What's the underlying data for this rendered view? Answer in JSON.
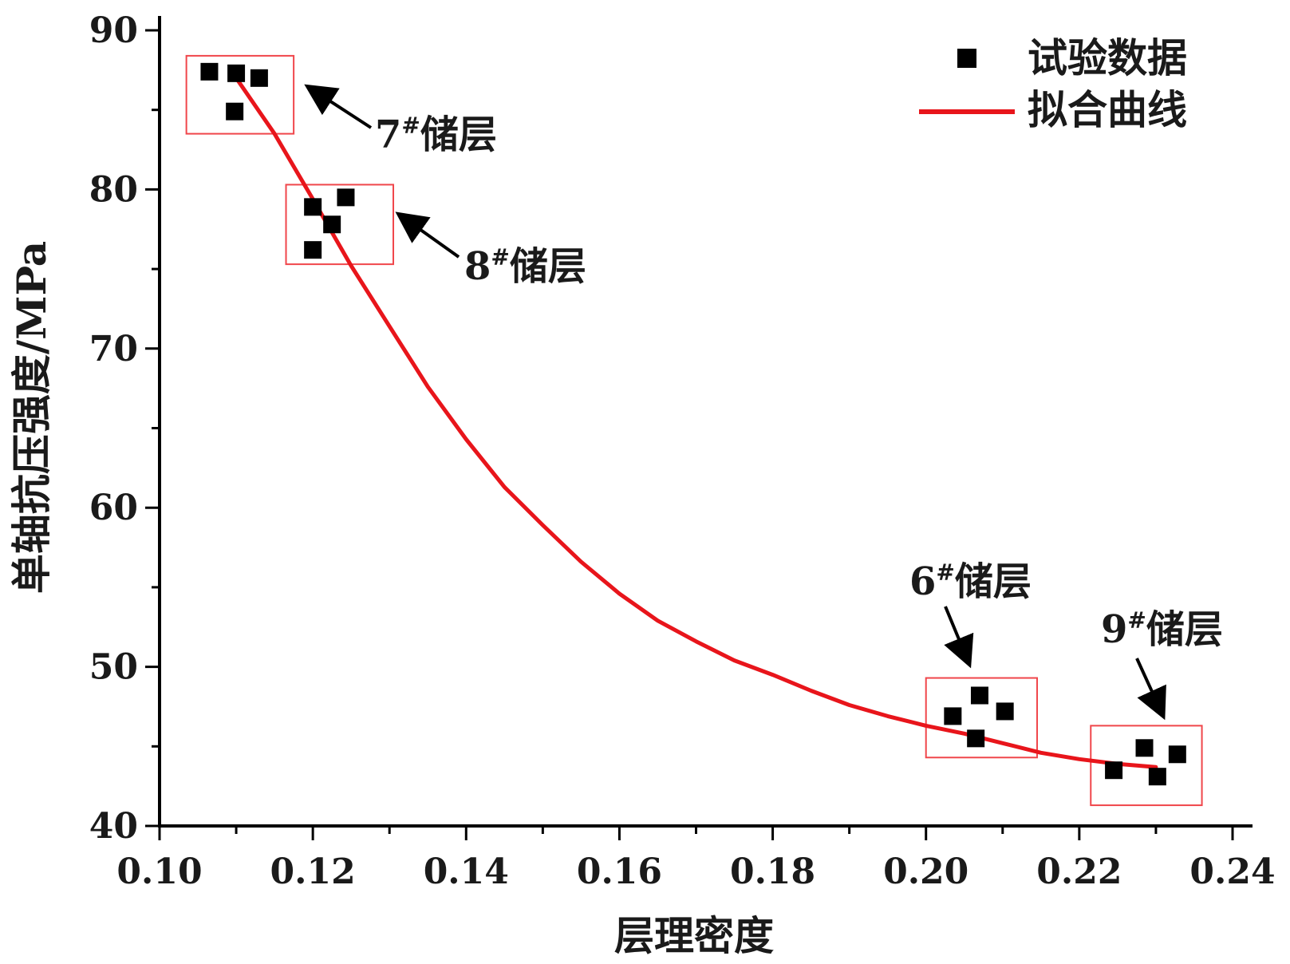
{
  "chart_data": {
    "type": "scatter",
    "xlabel": "层理密度",
    "ylabel": "单轴抗压强度/MPa",
    "xlim": [
      0.1,
      0.24
    ],
    "ylim": [
      40,
      90
    ],
    "x_ticks": [
      "0.10",
      "0.12",
      "0.14",
      "0.16",
      "0.18",
      "0.20",
      "0.22",
      "0.24"
    ],
    "y_ticks": [
      "40",
      "50",
      "60",
      "70",
      "80",
      "90"
    ],
    "grid": false,
    "legend_position": "top-right",
    "series": [
      {
        "name": "试验数据",
        "kind": "scatter",
        "color": "#000000",
        "points": [
          [
            0.1065,
            87.4
          ],
          [
            0.11,
            87.3
          ],
          [
            0.113,
            87.0
          ],
          [
            0.1098,
            84.9
          ],
          [
            0.12,
            78.9
          ],
          [
            0.1243,
            79.5
          ],
          [
            0.1225,
            77.8
          ],
          [
            0.12,
            76.2
          ],
          [
            0.2035,
            46.9
          ],
          [
            0.207,
            48.2
          ],
          [
            0.2103,
            47.2
          ],
          [
            0.2065,
            45.5
          ],
          [
            0.2245,
            43.5
          ],
          [
            0.2285,
            44.9
          ],
          [
            0.2302,
            43.1
          ],
          [
            0.2328,
            44.5
          ]
        ]
      },
      {
        "name": "拟合曲线",
        "kind": "line",
        "color": "#e8151b",
        "points": [
          [
            0.11,
            87.0
          ],
          [
            0.115,
            83.5
          ],
          [
            0.12,
            79.4
          ],
          [
            0.125,
            75.2
          ],
          [
            0.13,
            71.4
          ],
          [
            0.135,
            67.6
          ],
          [
            0.14,
            64.3
          ],
          [
            0.145,
            61.3
          ],
          [
            0.15,
            58.9
          ],
          [
            0.155,
            56.6
          ],
          [
            0.16,
            54.6
          ],
          [
            0.165,
            52.9
          ],
          [
            0.17,
            51.6
          ],
          [
            0.175,
            50.4
          ],
          [
            0.18,
            49.5
          ],
          [
            0.185,
            48.5
          ],
          [
            0.19,
            47.6
          ],
          [
            0.195,
            46.9
          ],
          [
            0.2,
            46.3
          ],
          [
            0.205,
            45.8
          ],
          [
            0.21,
            45.2
          ],
          [
            0.215,
            44.6
          ],
          [
            0.22,
            44.2
          ],
          [
            0.225,
            43.9
          ],
          [
            0.23,
            43.7
          ]
        ]
      }
    ],
    "annotations": [
      {
        "label": "7",
        "sup": "#",
        "suffix": "储层",
        "group_x": [
          0.1035,
          0.1175
        ],
        "group_y": [
          83.5,
          88.4
        ]
      },
      {
        "label": "8",
        "sup": "#",
        "suffix": "储层",
        "group_x": [
          0.1165,
          0.1305
        ],
        "group_y": [
          75.3,
          80.3
        ]
      },
      {
        "label": "6",
        "sup": "#",
        "suffix": "储层",
        "group_x": [
          0.2,
          0.2145
        ],
        "group_y": [
          44.3,
          49.3
        ]
      },
      {
        "label": "9",
        "sup": "#",
        "suffix": "储层",
        "group_x": [
          0.2215,
          0.236
        ],
        "group_y": [
          41.3,
          46.3
        ]
      }
    ]
  }
}
